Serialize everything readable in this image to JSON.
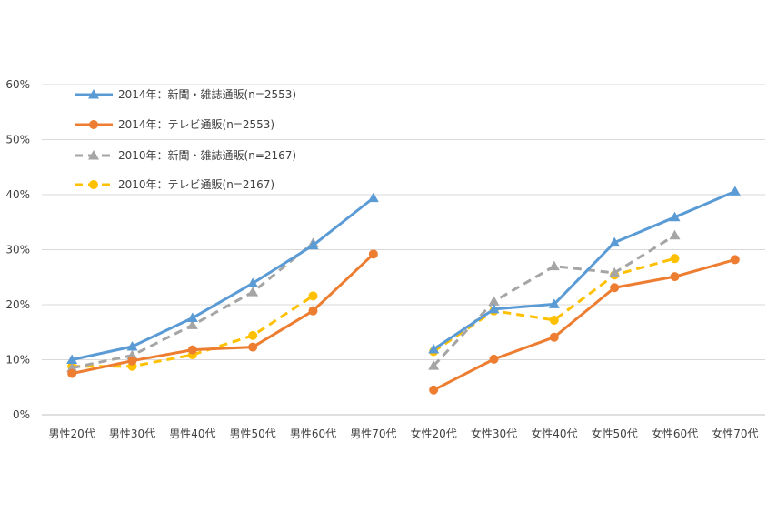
{
  "chart_data": {
    "type": "line",
    "title": "",
    "xlabel": "",
    "ylabel": "",
    "ylim": [
      0,
      60
    ],
    "y_ticks": [
      "0%",
      "10%",
      "20%",
      "30%",
      "40%",
      "50%",
      "60%"
    ],
    "grid": "horizontal",
    "legend_position": "top-left",
    "categories": [
      "男性20代",
      "男性30代",
      "男性40代",
      "男性50代",
      "男性60代",
      "男性70代",
      "女性20代",
      "女性30代",
      "女性40代",
      "女性50代",
      "女性60代",
      "女性70代"
    ],
    "series": [
      {
        "name": "2014年：新聞・雑誌通販(n=2553)",
        "color": "#5b9bd5",
        "marker": "triangle",
        "dash": "solid",
        "values": [
          10.0,
          12.4,
          17.6,
          23.9,
          30.8,
          39.4,
          11.9,
          19.2,
          20.1,
          31.3,
          35.9,
          40.6
        ]
      },
      {
        "name": "2014年：テレビ通販(n=2553)",
        "color": "#ed7d31",
        "marker": "circle",
        "dash": "solid",
        "values": [
          7.5,
          9.8,
          11.8,
          12.3,
          18.9,
          29.2,
          4.5,
          10.1,
          14.1,
          23.1,
          25.1,
          28.2
        ]
      },
      {
        "name": "2010年：新聞・雑誌通販(n=2167)",
        "color": "#a5a5a5",
        "marker": "triangle",
        "dash": "dashed",
        "values": [
          8.5,
          10.8,
          16.3,
          22.3,
          31.2,
          null,
          8.9,
          20.6,
          27.0,
          25.8,
          32.6,
          null
        ]
      },
      {
        "name": "2010年：テレビ通販(n=2167)",
        "color": "#ffc000",
        "marker": "circle",
        "dash": "dashed",
        "values": [
          8.8,
          8.8,
          10.9,
          14.4,
          21.6,
          null,
          11.5,
          18.9,
          17.2,
          25.4,
          28.4,
          null
        ]
      }
    ],
    "segments": [
      [
        0,
        5
      ],
      [
        6,
        11
      ]
    ]
  }
}
